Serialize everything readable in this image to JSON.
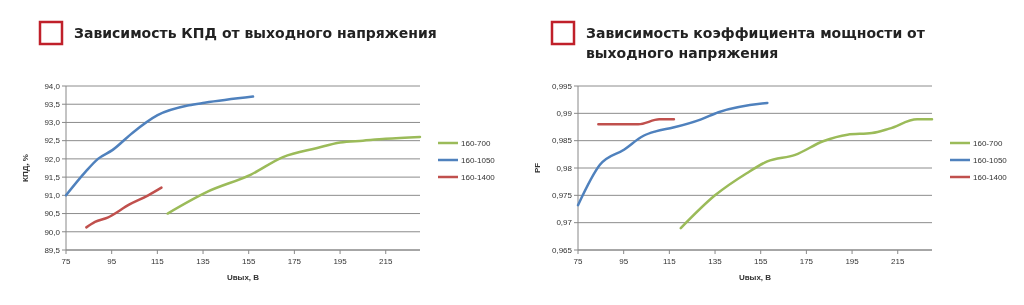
{
  "chart_data": [
    {
      "type": "line",
      "title": "Зависимость КПД от выходного напряжения",
      "xlabel": "Uвых, В",
      "ylabel": "КПД, %",
      "xlim": [
        75,
        230
      ],
      "xticks": [
        75,
        95,
        115,
        135,
        155,
        175,
        195,
        215
      ],
      "ylim": [
        89.5,
        94
      ],
      "yticks": [
        {
          "value": 89.5,
          "label": "89,5"
        },
        {
          "value": 90,
          "label": "90,0"
        },
        {
          "value": 90.5,
          "label": "90,5"
        },
        {
          "value": 91,
          "label": "91,0"
        },
        {
          "value": 91.5,
          "label": "91,5"
        },
        {
          "value": 92,
          "label": "92,0"
        },
        {
          "value": 92.5,
          "label": "92,5"
        },
        {
          "value": 93,
          "label": "93,0"
        },
        {
          "value": 93.5,
          "label": "93,5"
        },
        {
          "value": 94,
          "label": "94,0"
        }
      ],
      "grid": "y",
      "legend": "right",
      "series": [
        {
          "name": "160-700",
          "color": "#9bbb59",
          "x": [
            119.5,
            137,
            156,
            170,
            185,
            195,
            205,
            215,
            230
          ],
          "values": [
            90.5,
            91.1,
            91.57,
            92.05,
            92.3,
            92.45,
            92.5,
            92.55,
            92.6
          ]
        },
        {
          "name": "160-1050",
          "color": "#4f81bd",
          "x": [
            75,
            83.6,
            89,
            95.3,
            104.2,
            115.1,
            128.8,
            135.7,
            156.9
          ],
          "values": [
            91,
            91.65,
            92,
            92.24,
            92.72,
            93.2,
            93.47,
            93.54,
            93.71
          ]
        },
        {
          "name": "160-1400",
          "color": "#c0504d",
          "x": [
            83.9,
            87.7,
            93.2,
            102.8,
            111,
            116.8
          ],
          "values": [
            90.12,
            90.27,
            90.39,
            90.75,
            91,
            91.21
          ]
        }
      ]
    },
    {
      "type": "line",
      "title": "Зависимость коэффициента мощности от выходного напряжения",
      "xlabel": "Uвых, В",
      "ylabel": "PF",
      "xlim": [
        75,
        230
      ],
      "xticks": [
        75,
        95,
        115,
        135,
        155,
        175,
        195,
        215
      ],
      "ylim": [
        0.965,
        0.995
      ],
      "yticks": [
        {
          "value": 0.965,
          "label": "0,965"
        },
        {
          "value": 0.97,
          "label": "0,97"
        },
        {
          "value": 0.975,
          "label": "0,975"
        },
        {
          "value": 0.98,
          "label": "0,98"
        },
        {
          "value": 0.985,
          "label": "0,985"
        },
        {
          "value": 0.99,
          "label": "0,99"
        },
        {
          "value": 0.995,
          "label": "0,995"
        }
      ],
      "grid": "y",
      "legend": "right",
      "series": [
        {
          "name": "160-700",
          "color": "#9bbb59",
          "x": [
            120,
            135,
            148.7,
            157.9,
            170.1,
            182.3,
            193,
            203.7,
            211.3,
            223.5,
            230
          ],
          "values": [
            0.969,
            0.975,
            0.979,
            0.9812,
            0.9824,
            0.9849,
            0.9861,
            0.9864,
            0.9872,
            0.9889,
            0.9889
          ]
        },
        {
          "name": "160-1050",
          "color": "#4f81bd",
          "x": [
            75,
            84.6,
            95.3,
            103.7,
            109,
            116.7,
            128.9,
            136.5,
            157.9
          ],
          "values": [
            0.9732,
            0.9806,
            0.9834,
            0.9859,
            0.9867,
            0.9874,
            0.9889,
            0.9902,
            0.9919
          ]
        },
        {
          "name": "160-1400",
          "color": "#c0504d",
          "x": [
            83.9,
            101.4,
            110.6,
            117
          ],
          "values": [
            0.988,
            0.988,
            0.9889,
            0.9889
          ]
        }
      ]
    }
  ]
}
